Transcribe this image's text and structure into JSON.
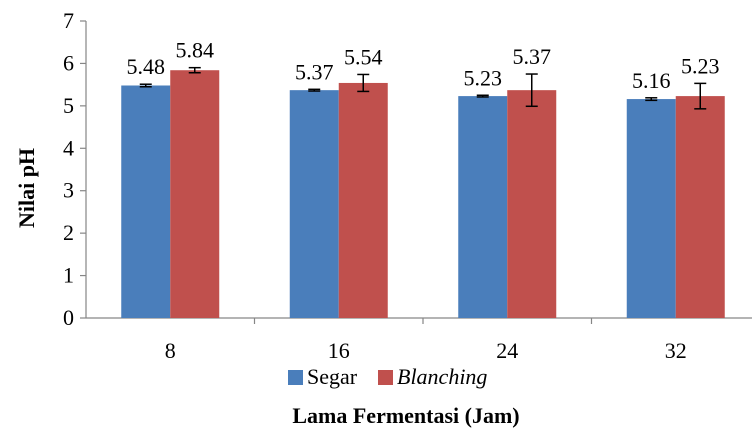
{
  "chart_data": {
    "type": "bar",
    "categories": [
      "8",
      "16",
      "24",
      "32"
    ],
    "series": [
      {
        "name": "Segar",
        "name_italic": false,
        "color": "#4a7ebb",
        "values": [
          5.48,
          5.37,
          5.23,
          5.16
        ],
        "labels": [
          "5.48",
          "5.37",
          "5.23",
          "5.16"
        ],
        "errors": [
          0.03,
          0.02,
          0.02,
          0.03
        ]
      },
      {
        "name": "Blanching",
        "name_italic": true,
        "color": "#c0504d",
        "values": [
          5.84,
          5.54,
          5.37,
          5.23
        ],
        "labels": [
          "5.84",
          "5.54",
          "5.37",
          "5.23"
        ],
        "errors": [
          0.06,
          0.2,
          0.38,
          0.3
        ]
      }
    ],
    "xlabel": "Lama Fermentasi (Jam)",
    "ylabel": "Nilai pH",
    "ylim": [
      0,
      7
    ],
    "yticks": [
      "0",
      "1",
      "2",
      "3",
      "4",
      "5",
      "6",
      "7"
    ],
    "grid": false,
    "legend_position": "bottom"
  }
}
